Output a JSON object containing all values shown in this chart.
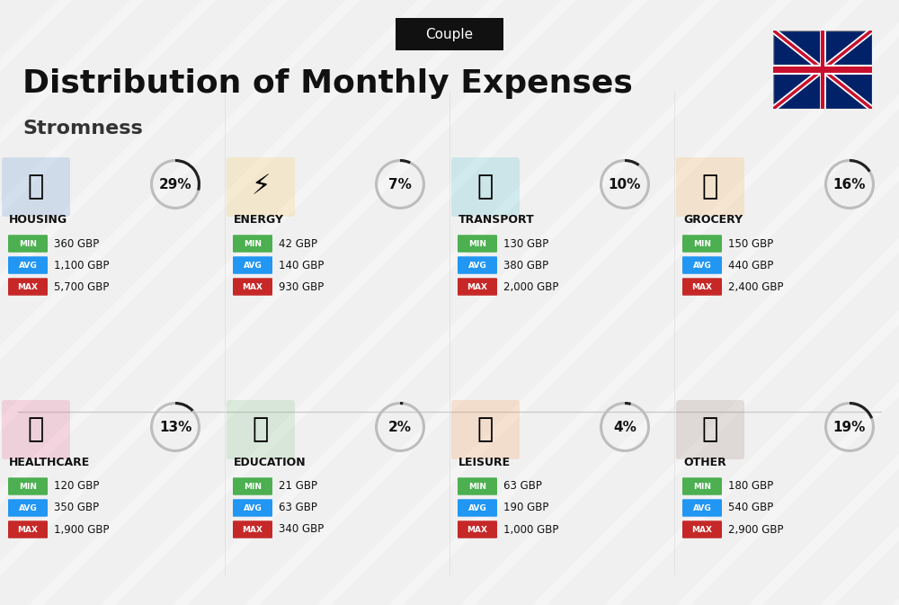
{
  "title": "Distribution of Monthly Expenses",
  "subtitle": "Stromness",
  "tag": "Couple",
  "bg_color": "#f0f0f0",
  "categories": [
    {
      "name": "HOUSING",
      "pct": 29,
      "col": 0,
      "row": 0,
      "min": "360 GBP",
      "avg": "1,100 GBP",
      "max": "5,700 GBP",
      "icon_color": "#2196F3"
    },
    {
      "name": "ENERGY",
      "pct": 7,
      "col": 1,
      "row": 0,
      "min": "42 GBP",
      "avg": "140 GBP",
      "max": "930 GBP",
      "icon_color": "#FFD700"
    },
    {
      "name": "TRANSPORT",
      "pct": 10,
      "col": 2,
      "row": 0,
      "min": "130 GBP",
      "avg": "380 GBP",
      "max": "2,000 GBP",
      "icon_color": "#26C6DA"
    },
    {
      "name": "GROCERY",
      "pct": 16,
      "col": 3,
      "row": 0,
      "min": "150 GBP",
      "avg": "440 GBP",
      "max": "2,400 GBP",
      "icon_color": "#FF9800"
    },
    {
      "name": "HEALTHCARE",
      "pct": 13,
      "col": 0,
      "row": 1,
      "min": "120 GBP",
      "avg": "350 GBP",
      "max": "1,900 GBP",
      "icon_color": "#E91E63"
    },
    {
      "name": "EDUCATION",
      "pct": 2,
      "col": 1,
      "row": 1,
      "min": "21 GBP",
      "avg": "63 GBP",
      "max": "340 GBP",
      "icon_color": "#4CAF50"
    },
    {
      "name": "LEISURE",
      "pct": 4,
      "col": 2,
      "row": 1,
      "min": "63 GBP",
      "avg": "190 GBP",
      "max": "1,000 GBP",
      "icon_color": "#FF5722"
    },
    {
      "name": "OTHER",
      "pct": 19,
      "col": 3,
      "row": 1,
      "min": "180 GBP",
      "avg": "540 GBP",
      "max": "2,900 GBP",
      "icon_color": "#795548"
    }
  ],
  "min_color": "#4CAF50",
  "avg_color": "#2196F3",
  "max_color": "#C62828",
  "ring_filled_color": "#212121",
  "ring_empty_color": "#BDBDBD",
  "label_color": "#212121"
}
